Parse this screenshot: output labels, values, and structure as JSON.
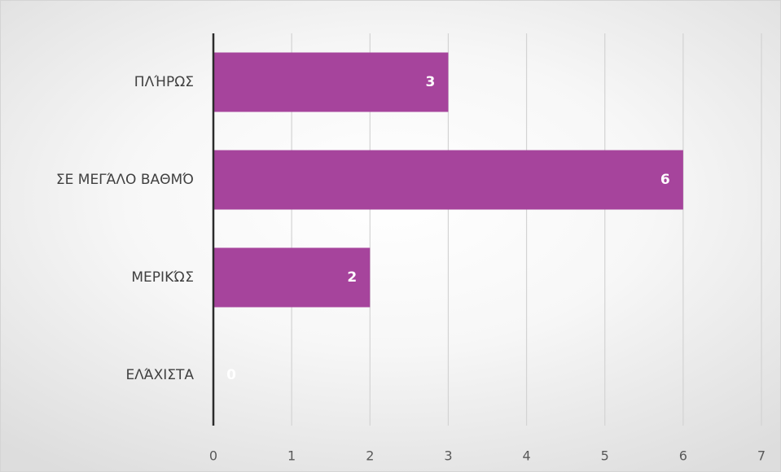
{
  "chart_data": {
    "type": "bar",
    "orientation": "horizontal",
    "categories": [
      "ΠΛΉΡΩΣ",
      "ΣΕ ΜΕΓΆΛΟ ΒΑΘΜΌ",
      "ΜΕΡΙΚΏΣ",
      "ΕΛΆΧΙΣΤΑ"
    ],
    "values": [
      3,
      6,
      2,
      0
    ],
    "xlim": [
      0,
      7
    ],
    "xticks": [
      "0",
      "1",
      "2",
      "3",
      "4",
      "5",
      "6",
      "7"
    ],
    "data_labels": [
      "3",
      "6",
      "2",
      "0"
    ],
    "grid": true,
    "legend": "none",
    "title": "",
    "xlabel": "",
    "ylabel": "",
    "colors": {
      "bar": "#A6449C",
      "grid": "#d3d3d3",
      "axis": "#2b2b2b",
      "data_label": "#ffffff"
    }
  }
}
